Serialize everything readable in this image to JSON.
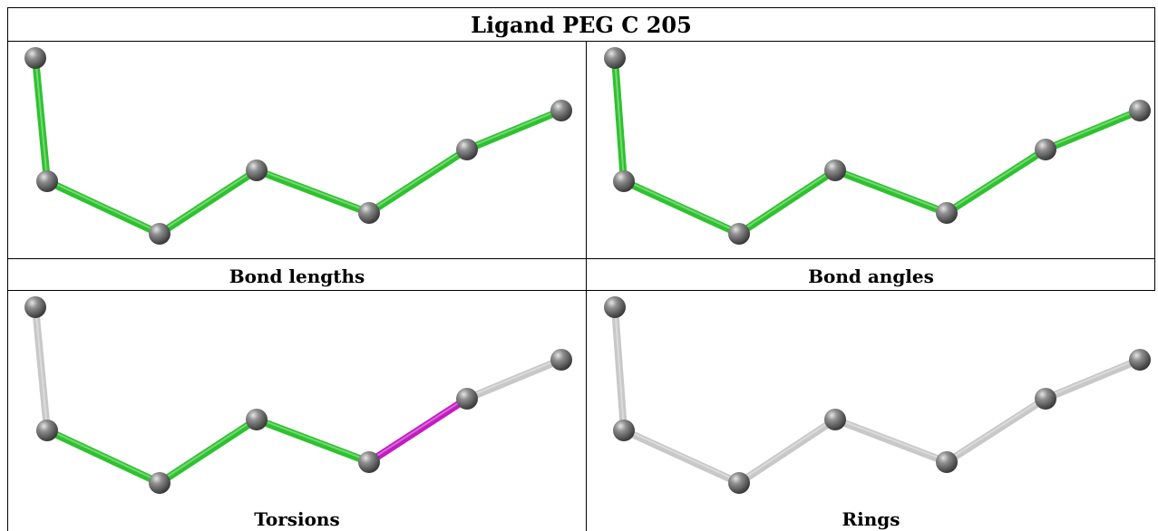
{
  "title": "Ligand PEG C 205",
  "bond_colors": {
    "green": "#2ec22e",
    "green_dark": "#1f9a1f",
    "magenta": "#c21cc2",
    "grey": "#c8c8c8",
    "grey_dark": "#9a9a9a",
    "atom": "#7a7a7a"
  },
  "panels": [
    {
      "caption": "Bond lengths",
      "bond_styles": [
        "green",
        "green",
        "green",
        "green",
        "green",
        "green"
      ]
    },
    {
      "caption": "Bond angles",
      "bond_styles": [
        "green",
        "green",
        "green",
        "green",
        "green",
        "green"
      ]
    },
    {
      "caption": "Torsions",
      "bond_styles": [
        "grey",
        "green",
        "green",
        "green",
        "magenta",
        "grey"
      ]
    },
    {
      "caption": "Rings",
      "bond_styles": [
        "grey",
        "grey",
        "grey",
        "grey",
        "grey",
        "grey"
      ]
    }
  ]
}
